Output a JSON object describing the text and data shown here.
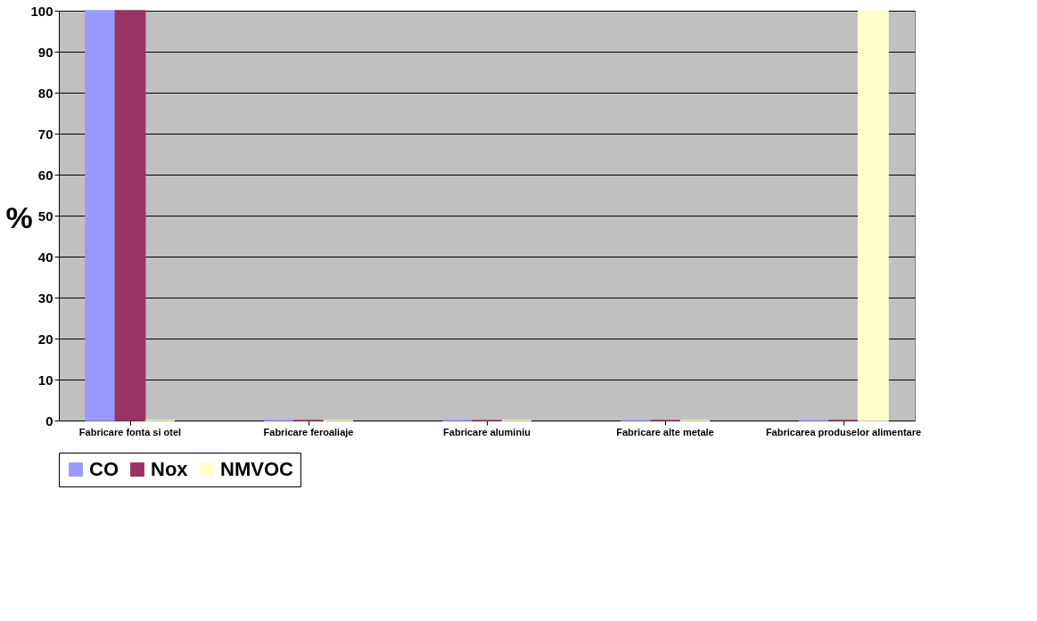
{
  "chart_data": {
    "type": "bar",
    "ylabel": "%",
    "categories": [
      "Fabricare fonta si otel",
      "Fabricare feroaliaje",
      "Fabricare aluminiu",
      "Fabricare alte metale",
      "Fabricarea produselor alimentare"
    ],
    "series": [
      {
        "name": "CO",
        "color": "#9999ff",
        "values": [
          100,
          0,
          0,
          0,
          0
        ]
      },
      {
        "name": "Nox",
        "color": "#993366",
        "values": [
          100,
          0,
          0,
          0,
          0
        ]
      },
      {
        "name": "NMVOC",
        "color": "#ffffcc",
        "values": [
          0,
          0,
          0,
          0,
          100
        ]
      }
    ],
    "ylim": [
      0,
      100
    ],
    "yticks": [
      0,
      10,
      20,
      30,
      40,
      50,
      60,
      70,
      80,
      90,
      100
    ],
    "grid": "y",
    "legend": "bottom"
  }
}
